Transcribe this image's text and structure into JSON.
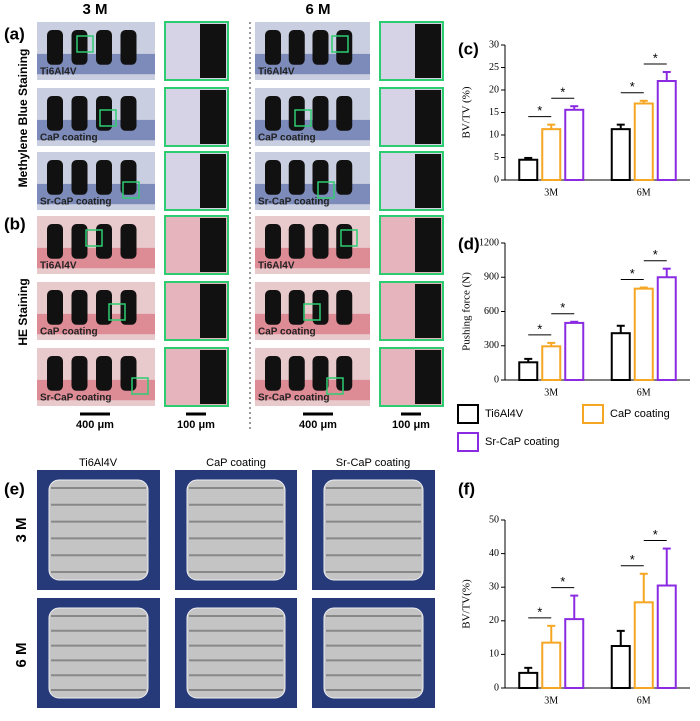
{
  "figure": {
    "panels": [
      "(a)",
      "(b)",
      "(e)"
    ],
    "columns": [
      "3 M",
      "6 M"
    ],
    "stains": [
      "Methylene Blue Staining",
      "HE Staining"
    ],
    "image_labels": [
      "Ti6Al4V",
      "CaP coating",
      "Sr-CaP coating"
    ],
    "scale_bars": [
      "400 μm",
      "100 μm"
    ],
    "e_columns": [
      "Ti6Al4V",
      "CaP coating",
      "Sr-CaP coating"
    ],
    "e_rows": [
      "3 M",
      "6 M"
    ]
  },
  "chart_data": [
    {
      "type": "bar",
      "label": "(c)",
      "y_label": "BV/TV (%)",
      "categories": [
        "3M",
        "6M"
      ],
      "ylim": [
        0,
        30
      ],
      "yticks": [
        0,
        5,
        10,
        15,
        20,
        25,
        30
      ],
      "series": [
        {
          "color": "#000000",
          "values": [
            4.5,
            11.3
          ],
          "errors": [
            0.4,
            1.0
          ]
        },
        {
          "color": "#f5a623",
          "values": [
            11.3,
            17
          ],
          "errors": [
            1.0,
            0.6
          ]
        },
        {
          "color": "#8a2be2",
          "values": [
            15.6,
            22
          ],
          "errors": [
            0.8,
            2.0
          ]
        }
      ],
      "annotations": [
        "*",
        "*",
        "*",
        "*"
      ]
    },
    {
      "type": "bar",
      "label": "(d)",
      "y_label": "Pushing force (N)",
      "categories": [
        "3M",
        "6M"
      ],
      "ylim": [
        0,
        1200
      ],
      "yticks": [
        0,
        300,
        600,
        900,
        1200
      ],
      "series": [
        {
          "name": "Ti6Al4V",
          "color": "#000000",
          "values": [
            155,
            410
          ],
          "errors": [
            30,
            65
          ]
        },
        {
          "name": "CaP coating",
          "color": "#f5a623",
          "values": [
            295,
            800
          ],
          "errors": [
            30,
            10
          ]
        },
        {
          "name": "Sr-CaP coating",
          "color": "#8a2be2",
          "values": [
            500,
            900
          ],
          "errors": [
            10,
            75
          ]
        }
      ],
      "annotations": [
        "*",
        "*",
        "*",
        "*"
      ]
    },
    {
      "type": "bar",
      "label": "(f)",
      "y_label": "BV/TV(%)",
      "categories": [
        "3M",
        "6M"
      ],
      "ylim": [
        0,
        50
      ],
      "yticks": [
        0,
        10,
        20,
        30,
        40,
        50
      ],
      "series": [
        {
          "color": "#000000",
          "values": [
            4.5,
            12.5
          ],
          "errors": [
            1.5,
            4.5
          ]
        },
        {
          "color": "#f5a623",
          "values": [
            13.5,
            25.5
          ],
          "errors": [
            5,
            8.5
          ]
        },
        {
          "color": "#8a2be2",
          "values": [
            20.5,
            30.5
          ],
          "errors": [
            7,
            11
          ]
        }
      ],
      "annotations": [
        "*",
        "*",
        "*",
        "*"
      ]
    }
  ]
}
